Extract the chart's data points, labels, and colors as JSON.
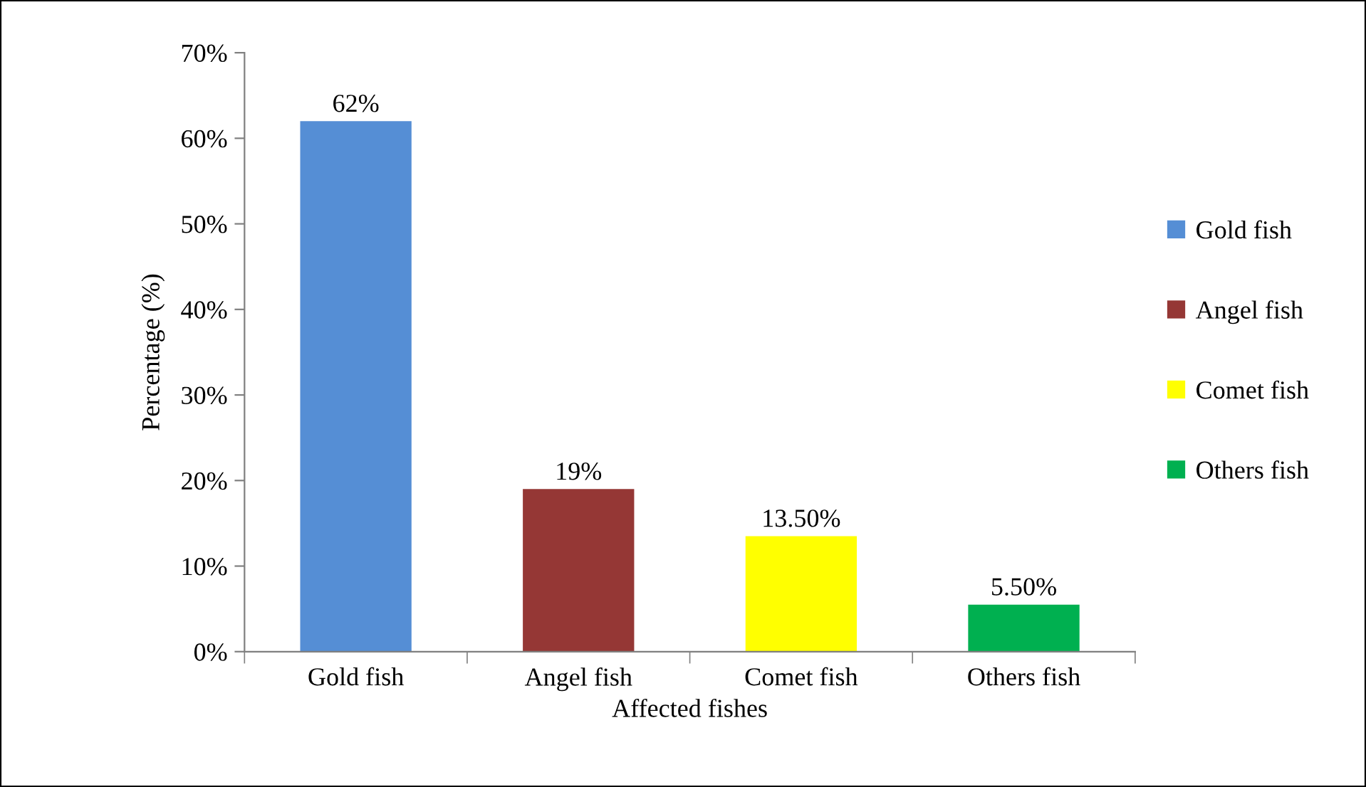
{
  "chart_data": {
    "type": "bar",
    "xlabel": "Affected fishes",
    "ylabel": "Percentage (%)",
    "categories": [
      "Gold fish",
      "Angel fish",
      "Comet fish",
      "Others fish"
    ],
    "series": [
      {
        "name": "Gold fish",
        "color": "#558ed5",
        "values": [
          62,
          null,
          null,
          null
        ],
        "value_labels": [
          "62%",
          null,
          null,
          null
        ]
      },
      {
        "name": "Angel fish",
        "color": "#953735",
        "values": [
          null,
          19,
          null,
          null
        ],
        "value_labels": [
          null,
          "19%",
          null,
          null
        ]
      },
      {
        "name": "Comet fish",
        "color": "#ffff00",
        "values": [
          null,
          null,
          13.5,
          null
        ],
        "value_labels": [
          null,
          null,
          "13.50%",
          null
        ]
      },
      {
        "name": "Others fish",
        "color": "#00b050",
        "values": [
          null,
          null,
          null,
          5.5
        ],
        "value_labels": [
          null,
          null,
          null,
          "5.50%"
        ]
      }
    ],
    "ylim": [
      0,
      70
    ],
    "yticks": [
      {
        "value": 0,
        "label": "0%"
      },
      {
        "value": 10,
        "label": "10%"
      },
      {
        "value": 20,
        "label": "20%"
      },
      {
        "value": 30,
        "label": "30%"
      },
      {
        "value": 40,
        "label": "40%"
      },
      {
        "value": 50,
        "label": "50%"
      },
      {
        "value": 60,
        "label": "60%"
      },
      {
        "value": 70,
        "label": "70%"
      }
    ],
    "grid": false,
    "legend": "right"
  }
}
